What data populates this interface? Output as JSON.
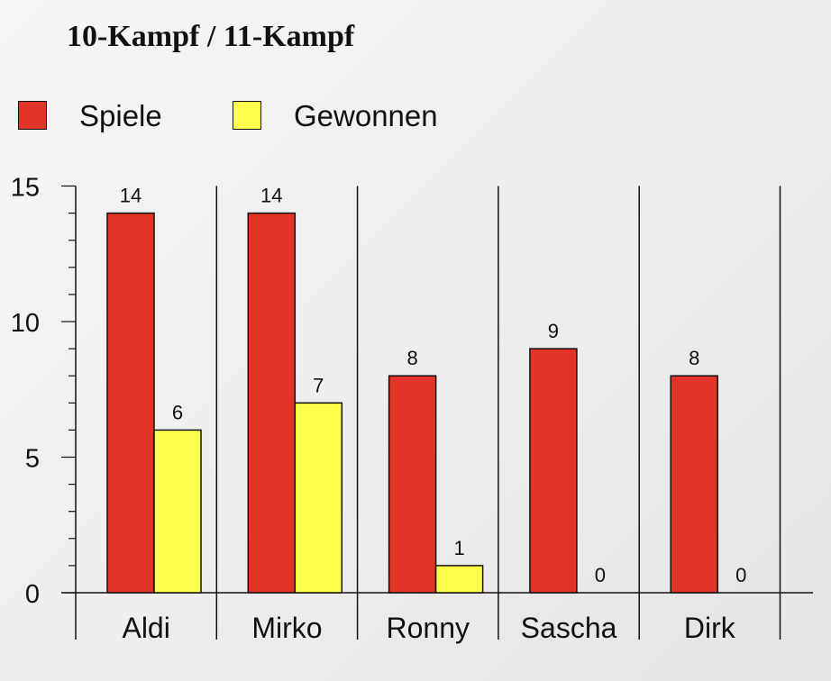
{
  "chart_data": {
    "type": "bar",
    "title": "10-Kampf / 11-Kampf",
    "categories": [
      "Aldi",
      "Mirko",
      "Ronny",
      "Sascha",
      "Dirk"
    ],
    "series": [
      {
        "name": "Spiele",
        "color": "#e03426",
        "values": [
          14,
          14,
          8,
          9,
          8
        ]
      },
      {
        "name": "Gewonnen",
        "color": "#ffff4c",
        "values": [
          6,
          7,
          1,
          0,
          0
        ]
      }
    ],
    "ylim": [
      0,
      15
    ],
    "yticks": [
      "0",
      "5",
      "10",
      "15"
    ],
    "xlabel": "",
    "ylabel": "",
    "grid": false,
    "legend_position": "top-left"
  }
}
